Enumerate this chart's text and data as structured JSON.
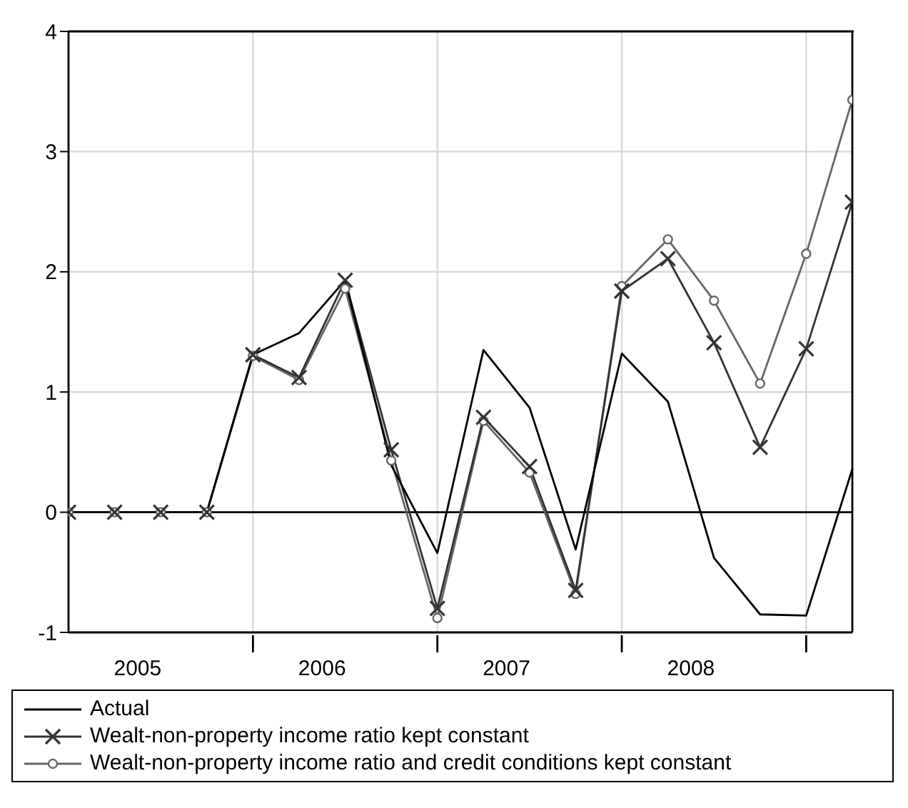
{
  "chart_data": {
    "type": "line",
    "x": [
      2005,
      2005.25,
      2005.5,
      2005.75,
      2006,
      2006.25,
      2006.5,
      2006.75,
      2007,
      2007.25,
      2007.5,
      2007.75,
      2008,
      2008.25,
      2008.5,
      2008.75,
      2009,
      2009.25
    ],
    "xlim": [
      2005,
      2009.25
    ],
    "xticks": [
      {
        "value": 2006,
        "label": null
      },
      {
        "value": 2007,
        "label": null
      },
      {
        "value": 2008,
        "label": null
      },
      {
        "value": 2009,
        "label": null
      },
      {
        "value": 2005.375,
        "label": "2005"
      },
      {
        "value": 2006.375,
        "label": "2006"
      },
      {
        "value": 2007.375,
        "label": "2007"
      },
      {
        "value": 2008.375,
        "label": "2008"
      }
    ],
    "ylim": [
      -1,
      4
    ],
    "yticks": [
      -1,
      0,
      1,
      2,
      3,
      4
    ],
    "grid": true,
    "legend": "bottom",
    "ref_lines": [
      {
        "axis": "y",
        "value": 0,
        "color": "#000000"
      }
    ],
    "series": [
      {
        "name": "Actual",
        "color": "#000000",
        "marker": "none",
        "values": [
          0,
          0,
          0,
          0,
          1.31,
          1.49,
          1.93,
          0.39,
          -0.34,
          1.35,
          0.87,
          -0.31,
          1.32,
          0.92,
          -0.38,
          -0.85,
          -0.86,
          0.36
        ]
      },
      {
        "name": "Wealt-non-property income ratio kept constant",
        "color": "#333333",
        "marker": "cross",
        "values": [
          0,
          0,
          0,
          0,
          1.31,
          1.12,
          1.93,
          0.52,
          -0.8,
          0.79,
          0.38,
          -0.65,
          1.84,
          2.11,
          1.41,
          0.54,
          1.36,
          2.58
        ]
      },
      {
        "name": "Wealt-non-property income ratio and credit conditions kept constant",
        "color": "#666666",
        "marker": "circle",
        "values": [
          0,
          0,
          0,
          0,
          1.3,
          1.1,
          1.86,
          0.43,
          -0.88,
          0.76,
          0.33,
          -0.68,
          1.88,
          2.27,
          1.76,
          1.07,
          2.15,
          3.43
        ]
      }
    ]
  }
}
